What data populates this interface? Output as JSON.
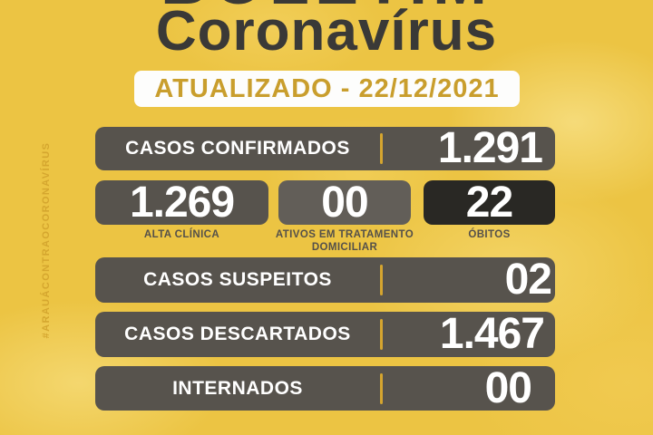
{
  "poster": {
    "cut_top_title": "BOLETIM",
    "title": "Coronavírus",
    "updated": "ATUALIZADO - 22/12/2021",
    "vertical_hashtag": "#ARAUÁCONTRAOCORONAVÍRUS"
  },
  "stats": {
    "confirmed": {
      "label": "CASOS CONFIRMADOS",
      "value": "1.291"
    },
    "breakdown": [
      {
        "value": "1.269",
        "label": "ALTA CLÍNICA"
      },
      {
        "value": "00",
        "label": "ATIVOS EM TRATAMENTO DOMICILIAR"
      },
      {
        "value": "22",
        "label": "ÓBITOS"
      }
    ],
    "suspected": {
      "label": "CASOS SUSPEITOS",
      "value": "02"
    },
    "discarded": {
      "label": "CASOS DESCARTADOS",
      "value": "1.467"
    },
    "hospitalized": {
      "label": "INTERNADOS",
      "value": "00"
    }
  },
  "colors": {
    "background_yellow": "#ecc443",
    "bar_gray": "#57534d",
    "box_medium_gray": "#625e58",
    "box_black": "#292824",
    "gold_accent": "#d5a52f",
    "banner_text_gold": "#c99e2d",
    "title_charcoal": "#3a3937",
    "white": "#ffffff"
  }
}
